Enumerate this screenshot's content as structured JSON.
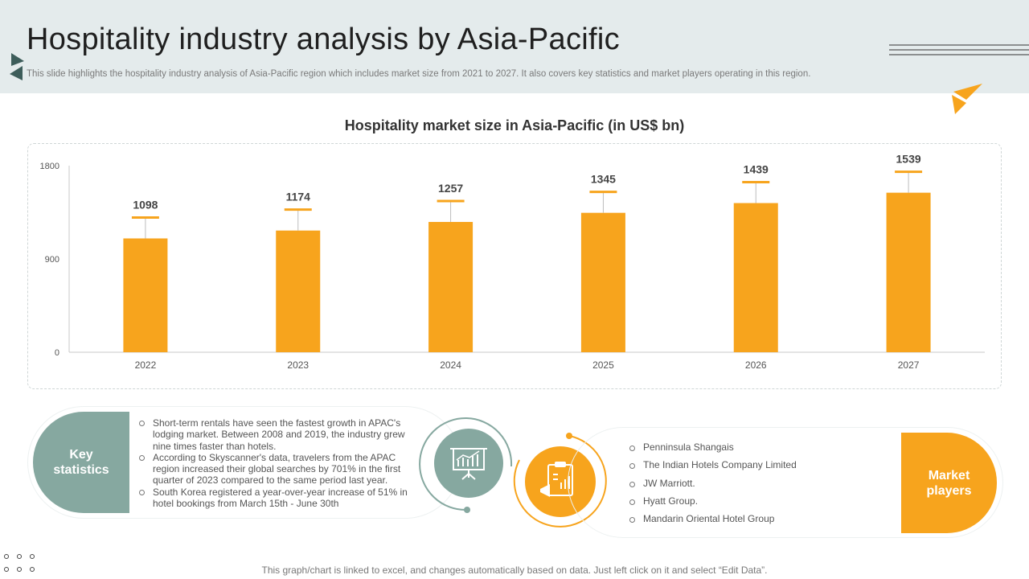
{
  "header": {
    "title": "Hospitality industry analysis by Asia-Pacific",
    "subtitle": "This slide highlights the hospitality industry analysis of Asia-Pacific region which includes market size from 2021 to 2027. It also covers key statistics and market players operating in this region."
  },
  "chart_data": {
    "type": "bar",
    "title": "Hospitality market size in Asia-Pacific (in US$ bn)",
    "categories": [
      "2022",
      "2023",
      "2024",
      "2025",
      "2026",
      "2027"
    ],
    "values": [
      1098,
      1174,
      1257,
      1345,
      1439,
      1539
    ],
    "data_labels": [
      "1098",
      "1174",
      "1257",
      "1345",
      "1439",
      "1539"
    ],
    "yticks": [
      0,
      900,
      1800
    ],
    "ytick_labels": [
      "0",
      "900",
      "1800"
    ],
    "ylim": [
      0,
      1800
    ],
    "xlabel": "",
    "ylabel": "",
    "bar_color": "#f7a41d",
    "grid": false
  },
  "key_statistics": {
    "label_line1": "Key",
    "label_line2": "statistics",
    "items": [
      "Short-term rentals have seen the fastest growth in APAC's lodging market. Between 2008 and 2019, the industry grew nine times faster than hotels.",
      "According to Skyscanner's data, travelers from the APAC region increased their global searches by 701% in the first quarter of 2023 compared to the same period last year.",
      "South Korea registered a year-over-year increase of 51% in hotel bookings from March 15th - June 30th"
    ],
    "icon": "presentation-chart-icon"
  },
  "market_players": {
    "label_line1": "Market",
    "label_line2": "players",
    "items": [
      "Penninsula Shangais",
      "The Indian Hotels Company Limited",
      "JW Marriott.",
      "Hyatt Group.",
      "Mandarin Oriental Hotel Group"
    ],
    "icon": "clipboard-chart-icon"
  },
  "footer": {
    "note": "This graph/chart is linked to excel, and changes automatically based on data. Just left click on it and select “Edit Data”."
  },
  "colors": {
    "accent": "#f7a41d",
    "teal": "#86a8a0",
    "header_bg": "#e4ebec"
  }
}
